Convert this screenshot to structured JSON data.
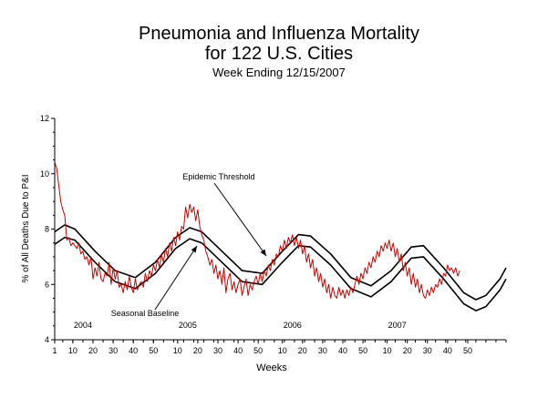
{
  "chart_data": {
    "type": "line",
    "title": "Pneumonia and Influenza Mortality",
    "title_line2": "for 122 U.S. Cities",
    "subtitle": "Week Ending 12/15/2007",
    "xlabel": "Weeks",
    "ylabel": "% of All Deaths Due to P&I",
    "ylim": [
      4,
      12
    ],
    "yticks": [
      4,
      6,
      8,
      10,
      12
    ],
    "grid": false,
    "x_ticks": [
      {
        "week": 1,
        "label": "1"
      },
      {
        "week": 10,
        "label": "10"
      },
      {
        "week": 20,
        "label": "20"
      },
      {
        "week": 30,
        "label": "30"
      },
      {
        "week": 40,
        "label": "40"
      },
      {
        "week": 50,
        "label": "50"
      },
      {
        "week": 62,
        "label": "10"
      },
      {
        "week": 72,
        "label": "20"
      },
      {
        "week": 82,
        "label": "30"
      },
      {
        "week": 92,
        "label": "40"
      },
      {
        "week": 102,
        "label": "50"
      },
      {
        "week": 114,
        "label": "10"
      },
      {
        "week": 124,
        "label": "20"
      },
      {
        "week": 134,
        "label": "30"
      },
      {
        "week": 144,
        "label": "40"
      },
      {
        "week": 154,
        "label": "50"
      },
      {
        "week": 166,
        "label": "10"
      },
      {
        "week": 176,
        "label": "20"
      },
      {
        "week": 186,
        "label": "30"
      },
      {
        "week": 196,
        "label": "40"
      },
      {
        "week": 206,
        "label": "50"
      }
    ],
    "years": [
      {
        "label": "2004",
        "week": 15
      },
      {
        "label": "2005",
        "week": 67
      },
      {
        "label": "2006",
        "week": 119
      },
      {
        "label": "2007",
        "week": 171
      }
    ],
    "annotations": {
      "threshold_label": "Epidemic Threshold",
      "baseline_label": "Seasonal Baseline"
    },
    "series": [
      {
        "key": "threshold",
        "color": "#000000",
        "points": [
          [
            1,
            7.9
          ],
          [
            6,
            8.15
          ],
          [
            11,
            8.0
          ],
          [
            21,
            7.2
          ],
          [
            31,
            6.5
          ],
          [
            41,
            6.25
          ],
          [
            51,
            6.8
          ],
          [
            61,
            7.7
          ],
          [
            68,
            8.05
          ],
          [
            74,
            7.9
          ],
          [
            84,
            7.2
          ],
          [
            94,
            6.5
          ],
          [
            104,
            6.4
          ],
          [
            114,
            7.2
          ],
          [
            122,
            7.8
          ],
          [
            128,
            7.75
          ],
          [
            138,
            7.1
          ],
          [
            148,
            6.25
          ],
          [
            158,
            5.95
          ],
          [
            168,
            6.5
          ],
          [
            178,
            7.35
          ],
          [
            184,
            7.4
          ],
          [
            194,
            6.6
          ],
          [
            204,
            5.7
          ],
          [
            210,
            5.45
          ],
          [
            215,
            5.6
          ],
          [
            222,
            6.2
          ],
          [
            225,
            6.6
          ]
        ]
      },
      {
        "key": "baseline",
        "color": "#000000",
        "points": [
          [
            1,
            7.45
          ],
          [
            6,
            7.7
          ],
          [
            11,
            7.6
          ],
          [
            21,
            6.8
          ],
          [
            31,
            6.1
          ],
          [
            41,
            5.85
          ],
          [
            51,
            6.4
          ],
          [
            61,
            7.3
          ],
          [
            68,
            7.65
          ],
          [
            74,
            7.5
          ],
          [
            84,
            6.8
          ],
          [
            94,
            6.1
          ],
          [
            104,
            6.0
          ],
          [
            114,
            6.8
          ],
          [
            122,
            7.4
          ],
          [
            128,
            7.35
          ],
          [
            138,
            6.7
          ],
          [
            148,
            5.85
          ],
          [
            158,
            5.55
          ],
          [
            168,
            6.1
          ],
          [
            178,
            6.95
          ],
          [
            184,
            7.0
          ],
          [
            194,
            6.2
          ],
          [
            204,
            5.3
          ],
          [
            210,
            5.05
          ],
          [
            215,
            5.2
          ],
          [
            222,
            5.8
          ],
          [
            225,
            6.2
          ]
        ]
      },
      {
        "key": "observed",
        "color": "#d00000",
        "points": [
          [
            1,
            10.4
          ],
          [
            2,
            10.2
          ],
          [
            3,
            9.6
          ],
          [
            4,
            9.0
          ],
          [
            5,
            8.7
          ],
          [
            6,
            8.5
          ],
          [
            7,
            7.6
          ],
          [
            8,
            7.7
          ],
          [
            9,
            7.4
          ],
          [
            10,
            7.5
          ],
          [
            11,
            7.4
          ],
          [
            12,
            7.3
          ],
          [
            13,
            7.5
          ],
          [
            14,
            7.1
          ],
          [
            15,
            7.2
          ],
          [
            16,
            6.9
          ],
          [
            17,
            7.0
          ],
          [
            18,
            6.7
          ],
          [
            19,
            7.0
          ],
          [
            20,
            6.2
          ],
          [
            21,
            6.6
          ],
          [
            22,
            6.3
          ],
          [
            23,
            6.8
          ],
          [
            24,
            6.2
          ],
          [
            25,
            6.1
          ],
          [
            26,
            6.4
          ],
          [
            27,
            6.3
          ],
          [
            28,
            6.8
          ],
          [
            29,
            6.0
          ],
          [
            30,
            6.6
          ],
          [
            31,
            6.2
          ],
          [
            32,
            6.5
          ],
          [
            33,
            5.9
          ],
          [
            34,
            6.0
          ],
          [
            35,
            5.7
          ],
          [
            36,
            6.1
          ],
          [
            37,
            5.8
          ],
          [
            38,
            6.3
          ],
          [
            39,
            5.9
          ],
          [
            40,
            5.7
          ],
          [
            41,
            6.2
          ],
          [
            42,
            5.8
          ],
          [
            43,
            6.0
          ],
          [
            44,
            6.1
          ],
          [
            45,
            5.9
          ],
          [
            46,
            6.4
          ],
          [
            47,
            6.1
          ],
          [
            48,
            6.5
          ],
          [
            49,
            6.3
          ],
          [
            50,
            6.7
          ],
          [
            51,
            6.5
          ],
          [
            52,
            6.9
          ],
          [
            53,
            6.6
          ],
          [
            54,
            7.1
          ],
          [
            55,
            6.8
          ],
          [
            56,
            7.3
          ],
          [
            57,
            7.0
          ],
          [
            58,
            7.5
          ],
          [
            59,
            7.2
          ],
          [
            60,
            7.7
          ],
          [
            61,
            7.4
          ],
          [
            62,
            7.9
          ],
          [
            63,
            7.6
          ],
          [
            64,
            8.1
          ],
          [
            65,
            8.0
          ],
          [
            66,
            8.8
          ],
          [
            67,
            8.4
          ],
          [
            68,
            8.9
          ],
          [
            69,
            8.6
          ],
          [
            70,
            8.8
          ],
          [
            71,
            8.3
          ],
          [
            72,
            8.7
          ],
          [
            73,
            8.1
          ],
          [
            74,
            7.8
          ],
          [
            75,
            7.6
          ],
          [
            76,
            7.2
          ],
          [
            77,
            7.0
          ],
          [
            78,
            6.7
          ],
          [
            79,
            6.9
          ],
          [
            80,
            6.4
          ],
          [
            81,
            6.7
          ],
          [
            82,
            6.2
          ],
          [
            83,
            6.5
          ],
          [
            84,
            6.0
          ],
          [
            85,
            6.6
          ],
          [
            86,
            5.7
          ],
          [
            87,
            6.2
          ],
          [
            88,
            6.4
          ],
          [
            89,
            5.8
          ],
          [
            90,
            6.1
          ],
          [
            91,
            5.7
          ],
          [
            92,
            6.0
          ],
          [
            93,
            6.2
          ],
          [
            94,
            5.6
          ],
          [
            95,
            5.9
          ],
          [
            96,
            6.2
          ],
          [
            97,
            5.6
          ],
          [
            98,
            6.0
          ],
          [
            99,
            5.8
          ],
          [
            100,
            6.1
          ],
          [
            101,
            6.3
          ],
          [
            102,
            6.0
          ],
          [
            103,
            6.4
          ],
          [
            104,
            6.1
          ],
          [
            105,
            6.5
          ],
          [
            106,
            6.3
          ],
          [
            107,
            6.7
          ],
          [
            108,
            6.5
          ],
          [
            109,
            6.9
          ],
          [
            110,
            6.7
          ],
          [
            111,
            7.1
          ],
          [
            112,
            7.0
          ],
          [
            113,
            7.4
          ],
          [
            114,
            7.2
          ],
          [
            115,
            7.6
          ],
          [
            116,
            7.3
          ],
          [
            117,
            7.7
          ],
          [
            118,
            7.5
          ],
          [
            119,
            7.8
          ],
          [
            120,
            7.4
          ],
          [
            121,
            7.7
          ],
          [
            122,
            7.3
          ],
          [
            123,
            7.6
          ],
          [
            124,
            7.1
          ],
          [
            125,
            7.4
          ],
          [
            126,
            6.8
          ],
          [
            127,
            7.1
          ],
          [
            128,
            6.6
          ],
          [
            129,
            6.9
          ],
          [
            130,
            6.3
          ],
          [
            131,
            6.6
          ],
          [
            132,
            6.1
          ],
          [
            133,
            6.4
          ],
          [
            134,
            5.9
          ],
          [
            135,
            6.2
          ],
          [
            136,
            5.7
          ],
          [
            137,
            6.0
          ],
          [
            138,
            5.5
          ],
          [
            139,
            5.9
          ],
          [
            140,
            5.6
          ],
          [
            141,
            5.5
          ],
          [
            142,
            5.9
          ],
          [
            143,
            5.6
          ],
          [
            144,
            5.8
          ],
          [
            145,
            5.5
          ],
          [
            146,
            5.8
          ],
          [
            147,
            5.6
          ],
          [
            148,
            5.9
          ],
          [
            149,
            5.7
          ],
          [
            150,
            6.0
          ],
          [
            151,
            6.3
          ],
          [
            152,
            6.0
          ],
          [
            153,
            6.4
          ],
          [
            154,
            6.2
          ],
          [
            155,
            6.6
          ],
          [
            156,
            6.4
          ],
          [
            157,
            6.8
          ],
          [
            158,
            6.6
          ],
          [
            159,
            7.0
          ],
          [
            160,
            6.8
          ],
          [
            161,
            7.2
          ],
          [
            162,
            7.0
          ],
          [
            163,
            7.4
          ],
          [
            164,
            7.2
          ],
          [
            165,
            7.5
          ],
          [
            166,
            7.3
          ],
          [
            167,
            7.6
          ],
          [
            168,
            7.2
          ],
          [
            169,
            7.5
          ],
          [
            170,
            7.0
          ],
          [
            171,
            7.3
          ],
          [
            172,
            6.8
          ],
          [
            173,
            7.1
          ],
          [
            174,
            6.5
          ],
          [
            175,
            6.8
          ],
          [
            176,
            6.3
          ],
          [
            177,
            6.6
          ],
          [
            178,
            6.0
          ],
          [
            179,
            6.4
          ],
          [
            180,
            5.9
          ],
          [
            181,
            6.2
          ],
          [
            182,
            5.7
          ],
          [
            183,
            6.0
          ],
          [
            184,
            5.6
          ],
          [
            185,
            5.5
          ],
          [
            186,
            5.8
          ],
          [
            187,
            5.6
          ],
          [
            188,
            5.9
          ],
          [
            189,
            5.7
          ],
          [
            190,
            6.0
          ],
          [
            191,
            5.9
          ],
          [
            192,
            6.2
          ],
          [
            193,
            6.0
          ],
          [
            194,
            6.4
          ],
          [
            195,
            6.3
          ],
          [
            196,
            6.7
          ],
          [
            197,
            6.5
          ],
          [
            198,
            6.6
          ],
          [
            199,
            6.4
          ],
          [
            200,
            6.6
          ],
          [
            201,
            6.3
          ],
          [
            202,
            6.5
          ]
        ]
      }
    ]
  }
}
